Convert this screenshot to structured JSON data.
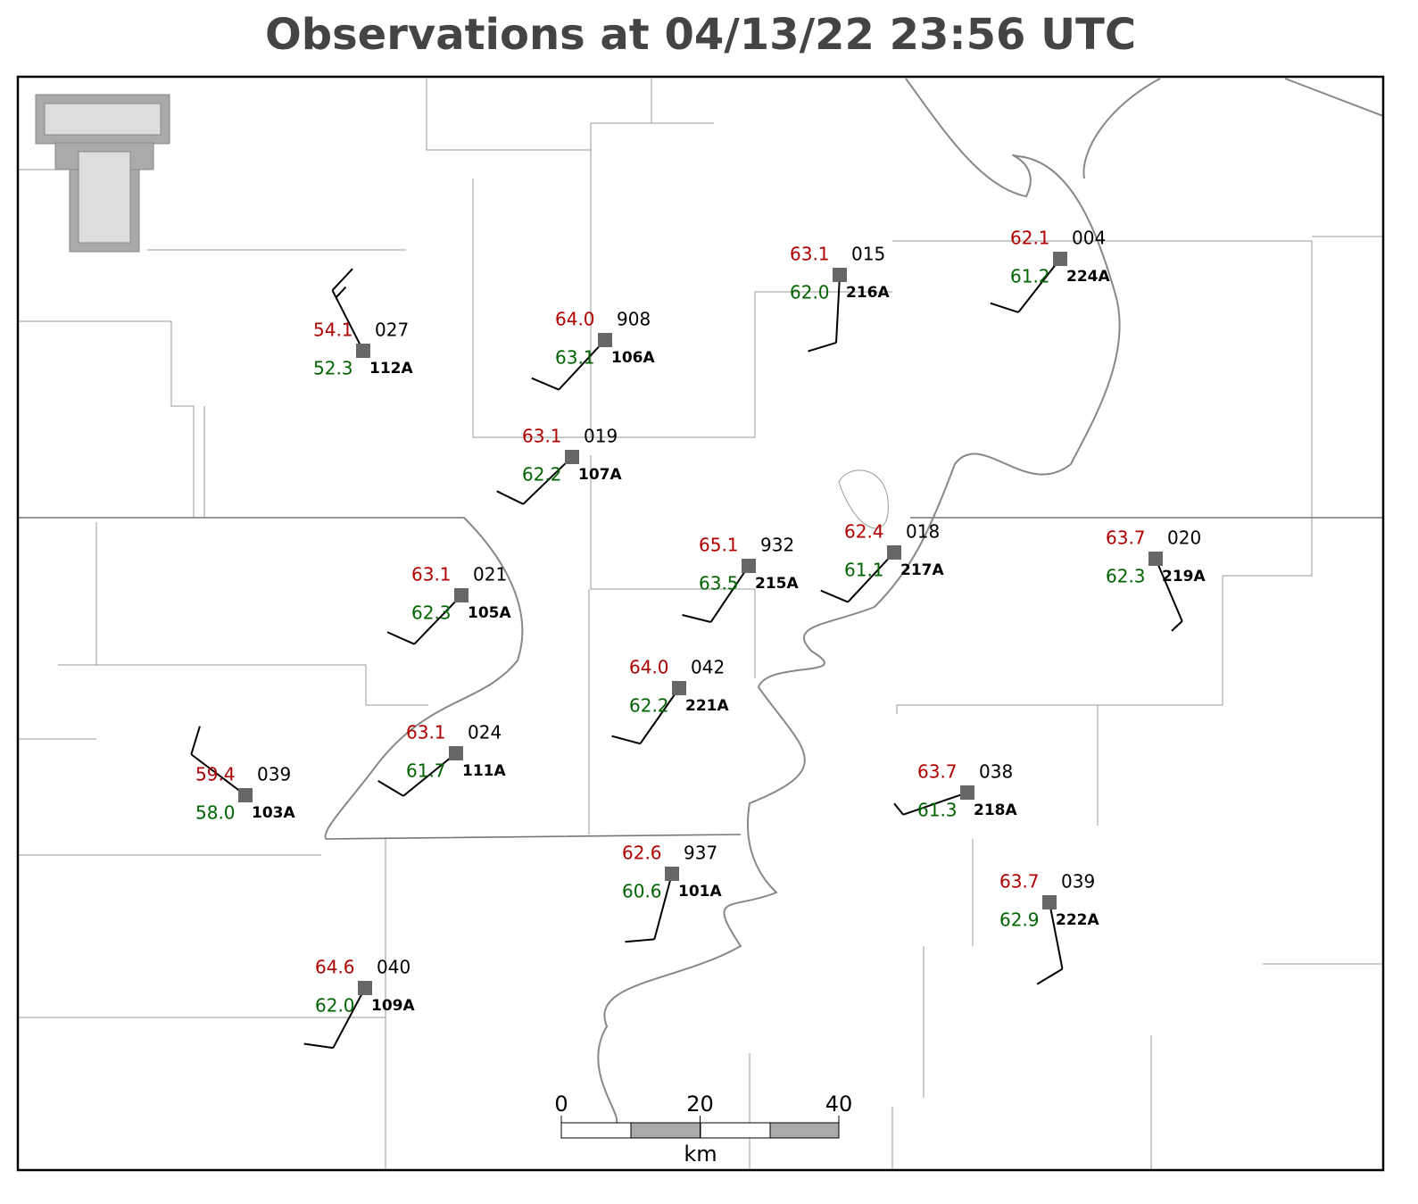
{
  "title": "Observations at 04/13/22 23:56 UTC",
  "stations": [
    {
      "id": "112A",
      "temperature": "54.1",
      "dewpoint": "52.3",
      "pressure": "027",
      "wind_from": 333,
      "wind_kt": 15
    },
    {
      "id": "106A",
      "temperature": "64.0",
      "dewpoint": "63.1",
      "pressure": "908",
      "wind_from": 223,
      "wind_kt": 10
    },
    {
      "id": "107A",
      "temperature": "63.1",
      "dewpoint": "62.2",
      "pressure": "019",
      "wind_from": 226,
      "wind_kt": 10
    },
    {
      "id": "216A",
      "temperature": "63.1",
      "dewpoint": "62.0",
      "pressure": "015",
      "wind_from": 183,
      "wind_kt": 10
    },
    {
      "id": "224A",
      "temperature": "62.1",
      "dewpoint": "61.2",
      "pressure": "004",
      "wind_from": 218,
      "wind_kt": 10
    },
    {
      "id": "105A",
      "temperature": "63.1",
      "dewpoint": "62.3",
      "pressure": "021",
      "wind_from": 224,
      "wind_kt": 10
    },
    {
      "id": "215A",
      "temperature": "65.1",
      "dewpoint": "63.5",
      "pressure": "932",
      "wind_from": 214,
      "wind_kt": 10
    },
    {
      "id": "217A",
      "temperature": "62.4",
      "dewpoint": "61.1",
      "pressure": "018",
      "wind_from": 223,
      "wind_kt": 10
    },
    {
      "id": "219A",
      "temperature": "63.7",
      "dewpoint": "62.3",
      "pressure": "020",
      "wind_from": 157,
      "wind_kt": 5
    },
    {
      "id": "221A",
      "temperature": "64.0",
      "dewpoint": "62.2",
      "pressure": "042",
      "wind_from": 215,
      "wind_kt": 10
    },
    {
      "id": "103A",
      "temperature": "59.4",
      "dewpoint": "58.0",
      "pressure": "039",
      "wind_from": 307,
      "wind_kt": 10
    },
    {
      "id": "111A",
      "temperature": "63.1",
      "dewpoint": "61.7",
      "pressure": "024",
      "wind_from": 231,
      "wind_kt": 10
    },
    {
      "id": "218A",
      "temperature": "63.7",
      "dewpoint": "61.3",
      "pressure": "038",
      "wind_from": 251,
      "wind_kt": 5
    },
    {
      "id": "101A",
      "temperature": "62.6",
      "dewpoint": "60.6",
      "pressure": "937",
      "wind_from": 195,
      "wind_kt": 10
    },
    {
      "id": "222A",
      "temperature": "63.7",
      "dewpoint": "62.9",
      "pressure": "039",
      "wind_from": 169,
      "wind_kt": 10
    },
    {
      "id": "109A",
      "temperature": "64.6",
      "dewpoint": "62.0",
      "pressure": "040",
      "wind_from": 208,
      "wind_kt": 10
    }
  ],
  "scale_bar": {
    "ticks": [
      0,
      20,
      40
    ],
    "unit": "km"
  }
}
